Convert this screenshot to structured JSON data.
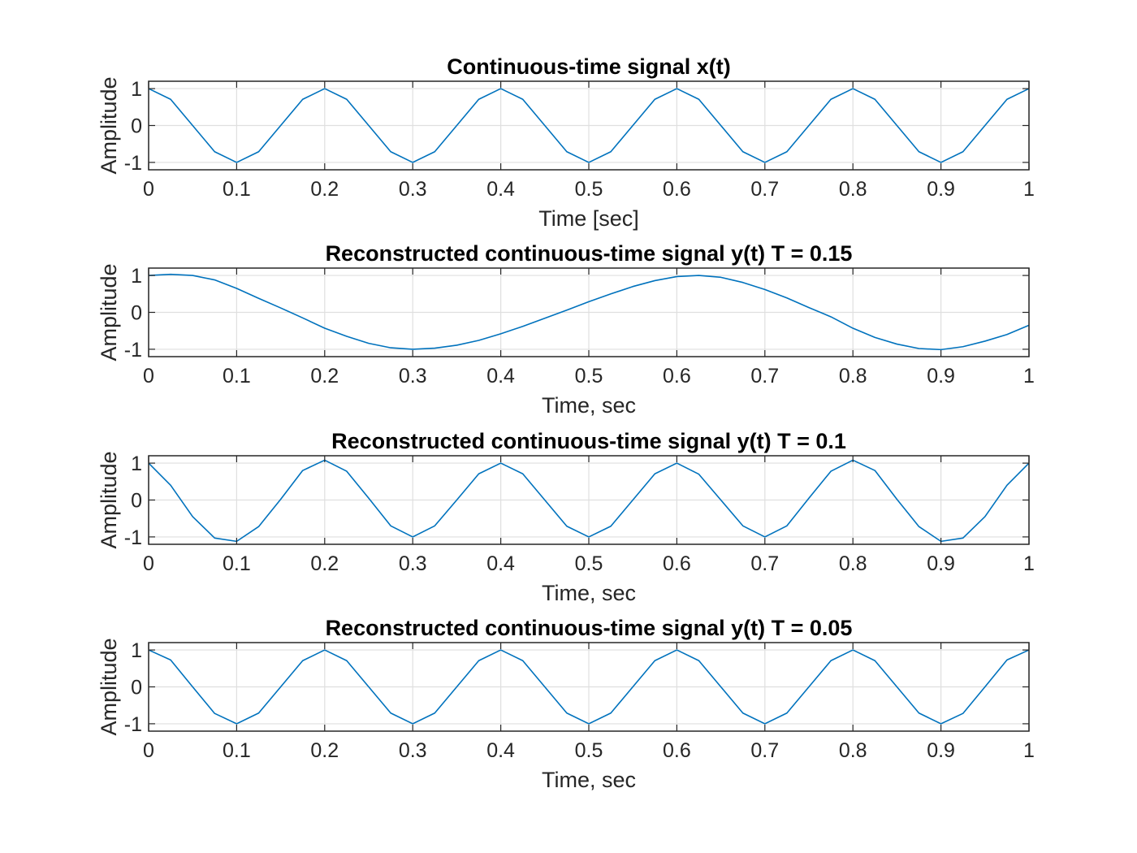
{
  "figure": {
    "background": "#ffffff",
    "line_color": "#0072BD",
    "grid": true
  },
  "chart_data": [
    {
      "type": "line",
      "title": "Continuous-time signal x(t)",
      "xlabel": "Time [sec]",
      "ylabel": "Amplitude",
      "xlim": [
        0,
        1
      ],
      "ylim": [
        -1.2,
        1.2
      ],
      "xticks": [
        "0",
        "0.1",
        "0.2",
        "0.3",
        "0.4",
        "0.5",
        "0.6",
        "0.7",
        "0.8",
        "0.9",
        "1"
      ],
      "yticks": [
        "-1",
        "0",
        "1"
      ],
      "series": [
        {
          "x": [
            0,
            0.025,
            0.05,
            0.075,
            0.1,
            0.125,
            0.15,
            0.175,
            0.2,
            0.225,
            0.25,
            0.275,
            0.3,
            0.325,
            0.35,
            0.375,
            0.4,
            0.425,
            0.45,
            0.475,
            0.5,
            0.525,
            0.55,
            0.575,
            0.6,
            0.625,
            0.65,
            0.675,
            0.7,
            0.725,
            0.75,
            0.775,
            0.8,
            0.825,
            0.85,
            0.875,
            0.9,
            0.925,
            0.95,
            0.975,
            1
          ],
          "y": [
            1,
            0.71,
            0,
            -0.71,
            -1,
            -0.71,
            0,
            0.71,
            1,
            0.71,
            0,
            -0.71,
            -1,
            -0.71,
            0,
            0.71,
            1,
            0.71,
            0,
            -0.71,
            -1,
            -0.71,
            0,
            0.71,
            1,
            0.71,
            0,
            -0.71,
            -1,
            -0.71,
            0,
            0.71,
            1,
            0.71,
            0,
            -0.71,
            -1,
            -0.71,
            0,
            0.71,
            1
          ]
        }
      ]
    },
    {
      "type": "line",
      "title": "Reconstructed continuous-time signal y(t) T = 0.15",
      "xlabel": "Time, sec",
      "ylabel": "Amplitude",
      "xlim": [
        0,
        1
      ],
      "ylim": [
        -1.2,
        1.2
      ],
      "xticks": [
        "0",
        "0.1",
        "0.2",
        "0.3",
        "0.4",
        "0.5",
        "0.6",
        "0.7",
        "0.8",
        "0.9",
        "1"
      ],
      "yticks": [
        "-1",
        "0",
        "1"
      ],
      "series": [
        {
          "x": [
            0,
            0.025,
            0.05,
            0.075,
            0.1,
            0.125,
            0.15,
            0.175,
            0.2,
            0.225,
            0.25,
            0.275,
            0.3,
            0.325,
            0.35,
            0.375,
            0.4,
            0.425,
            0.45,
            0.475,
            0.5,
            0.525,
            0.55,
            0.575,
            0.6,
            0.625,
            0.65,
            0.675,
            0.7,
            0.725,
            0.75,
            0.775,
            0.8,
            0.825,
            0.85,
            0.875,
            0.9,
            0.925,
            0.95,
            0.975,
            1
          ],
          "y": [
            1,
            1.03,
            1,
            0.88,
            0.65,
            0.38,
            0.12,
            -0.15,
            -0.43,
            -0.65,
            -0.84,
            -0.96,
            -1,
            -0.97,
            -0.89,
            -0.76,
            -0.58,
            -0.38,
            -0.16,
            0.06,
            0.29,
            0.5,
            0.7,
            0.86,
            0.97,
            1,
            0.95,
            0.81,
            0.62,
            0.39,
            0.13,
            -0.12,
            -0.43,
            -0.68,
            -0.86,
            -0.98,
            -1.01,
            -0.93,
            -0.78,
            -0.6,
            -0.35
          ]
        }
      ]
    },
    {
      "type": "line",
      "title": "Reconstructed continuous-time signal y(t) T = 0.1",
      "xlabel": "Time, sec",
      "ylabel": "Amplitude",
      "xlim": [
        0,
        1
      ],
      "ylim": [
        -1.2,
        1.2
      ],
      "xticks": [
        "0",
        "0.1",
        "0.2",
        "0.3",
        "0.4",
        "0.5",
        "0.6",
        "0.7",
        "0.8",
        "0.9",
        "1"
      ],
      "yticks": [
        "-1",
        "0",
        "1"
      ],
      "series": [
        {
          "x": [
            0,
            0.025,
            0.05,
            0.075,
            0.1,
            0.125,
            0.15,
            0.175,
            0.2,
            0.225,
            0.25,
            0.275,
            0.3,
            0.325,
            0.35,
            0.375,
            0.4,
            0.425,
            0.45,
            0.475,
            0.5,
            0.525,
            0.55,
            0.575,
            0.6,
            0.625,
            0.65,
            0.675,
            0.7,
            0.725,
            0.75,
            0.775,
            0.8,
            0.825,
            0.85,
            0.875,
            0.9,
            0.925,
            0.95,
            0.975,
            1
          ],
          "y": [
            1,
            0.4,
            -0.45,
            -1.03,
            -1.12,
            -0.72,
            0.02,
            0.8,
            1.08,
            0.78,
            0.05,
            -0.7,
            -1,
            -0.7,
            0,
            0.71,
            1,
            0.71,
            0,
            -0.71,
            -1,
            -0.71,
            0,
            0.71,
            1,
            0.7,
            0,
            -0.7,
            -1,
            -0.7,
            0.05,
            0.78,
            1.08,
            0.8,
            0.02,
            -0.72,
            -1.12,
            -1.03,
            -0.45,
            0.4,
            1
          ]
        }
      ]
    },
    {
      "type": "line",
      "title": "Reconstructed continuous-time signal y(t) T = 0.05",
      "xlabel": "Time, sec",
      "ylabel": "Amplitude",
      "xlim": [
        0,
        1
      ],
      "ylim": [
        -1.2,
        1.2
      ],
      "xticks": [
        "0",
        "0.1",
        "0.2",
        "0.3",
        "0.4",
        "0.5",
        "0.6",
        "0.7",
        "0.8",
        "0.9",
        "1"
      ],
      "yticks": [
        "-1",
        "0",
        "1"
      ],
      "series": [
        {
          "x": [
            0,
            0.025,
            0.05,
            0.075,
            0.1,
            0.125,
            0.15,
            0.175,
            0.2,
            0.225,
            0.25,
            0.275,
            0.3,
            0.325,
            0.35,
            0.375,
            0.4,
            0.425,
            0.45,
            0.475,
            0.5,
            0.525,
            0.55,
            0.575,
            0.6,
            0.625,
            0.65,
            0.675,
            0.7,
            0.725,
            0.75,
            0.775,
            0.8,
            0.825,
            0.85,
            0.875,
            0.9,
            0.925,
            0.95,
            0.975,
            1
          ],
          "y": [
            1,
            0.73,
            0,
            -0.72,
            -1,
            -0.71,
            0,
            0.71,
            1,
            0.71,
            0,
            -0.71,
            -1,
            -0.71,
            0,
            0.71,
            1,
            0.71,
            0,
            -0.71,
            -1,
            -0.71,
            0,
            0.71,
            1,
            0.71,
            0,
            -0.71,
            -1,
            -0.71,
            0,
            0.71,
            1,
            0.71,
            0,
            -0.71,
            -1,
            -0.72,
            0,
            0.73,
            1
          ]
        }
      ]
    }
  ]
}
